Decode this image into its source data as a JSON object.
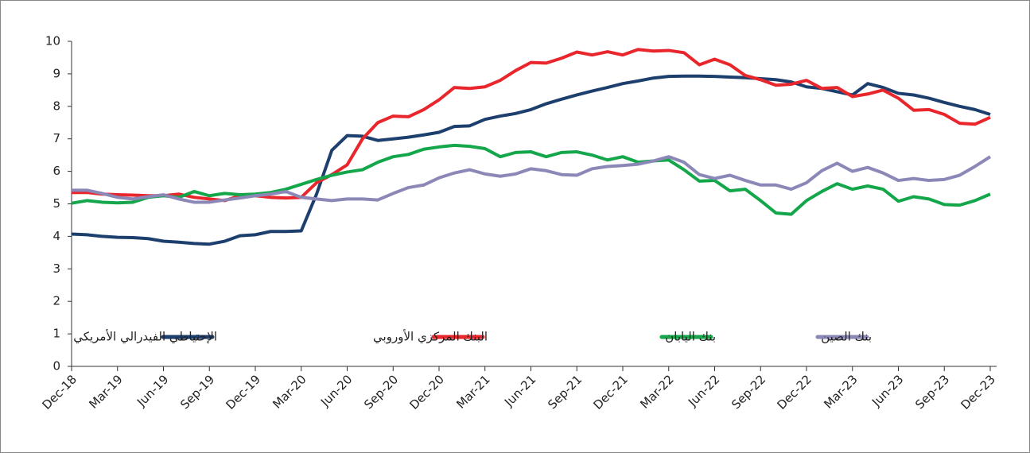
{
  "chart_data": {
    "type": "line",
    "categories": [
      "Dec-18",
      null,
      null,
      "Mar-19",
      null,
      null,
      "Jun-19",
      null,
      null,
      "Sep-19",
      null,
      null,
      "Dec-19",
      null,
      null,
      "Mar-20",
      null,
      null,
      "Jun-20",
      null,
      null,
      "Sep-20",
      null,
      null,
      "Dec-20",
      null,
      null,
      "Mar-21",
      null,
      null,
      "Jun-21",
      null,
      null,
      "Sep-21",
      null,
      null,
      "Dec-21",
      null,
      null,
      "Mar-22",
      null,
      null,
      "Jun-22",
      null,
      null,
      "Sep-22",
      null,
      null,
      "Dec-22",
      null,
      null,
      "Mar-23",
      null,
      null,
      "Jun-23",
      null,
      null,
      "Sep-23",
      null,
      null,
      "Dec-23"
    ],
    "series": [
      {
        "name": "الإحتياطي الفيدرالي الأمريكي",
        "color": "#1c3f6e",
        "values": [
          4.07,
          4.05,
          4.0,
          3.97,
          3.96,
          3.93,
          3.85,
          3.82,
          3.78,
          3.76,
          3.85,
          4.02,
          4.05,
          4.15,
          4.15,
          4.17,
          5.3,
          6.65,
          7.1,
          7.08,
          6.95,
          7.0,
          7.05,
          7.12,
          7.2,
          7.38,
          7.4,
          7.6,
          7.7,
          7.78,
          7.9,
          8.08,
          8.22,
          8.35,
          8.47,
          8.58,
          8.7,
          8.78,
          8.87,
          8.92,
          8.93,
          8.93,
          8.92,
          8.9,
          8.88,
          8.85,
          8.82,
          8.75,
          8.6,
          8.55,
          8.45,
          8.35,
          8.7,
          8.58,
          8.4,
          8.35,
          8.25,
          8.12,
          8.0,
          7.9,
          7.75
        ]
      },
      {
        "name": "البنك المركزي الأوروبي",
        "color": "#e8262c",
        "values": [
          5.35,
          5.35,
          5.3,
          5.28,
          5.27,
          5.25,
          5.25,
          5.3,
          5.2,
          5.15,
          5.1,
          5.25,
          5.25,
          5.2,
          5.18,
          5.2,
          5.65,
          5.9,
          6.2,
          7.0,
          7.5,
          7.7,
          7.68,
          7.9,
          8.2,
          8.58,
          8.55,
          8.6,
          8.8,
          9.1,
          9.35,
          9.33,
          9.48,
          9.67,
          9.58,
          9.68,
          9.58,
          9.75,
          9.7,
          9.72,
          9.65,
          9.28,
          9.45,
          9.28,
          8.95,
          8.82,
          8.65,
          8.68,
          8.8,
          8.55,
          8.58,
          8.3,
          8.38,
          8.5,
          8.25,
          7.88,
          7.9,
          7.75,
          7.48,
          7.45,
          7.66
        ]
      },
      {
        "name": "بنك اليابان",
        "color": "#14a64a",
        "values": [
          5.02,
          5.1,
          5.05,
          5.03,
          5.05,
          5.2,
          5.25,
          5.2,
          5.38,
          5.25,
          5.32,
          5.28,
          5.3,
          5.35,
          5.45,
          5.6,
          5.75,
          5.88,
          5.98,
          6.05,
          6.28,
          6.45,
          6.52,
          6.68,
          6.75,
          6.8,
          6.77,
          6.7,
          6.45,
          6.58,
          6.6,
          6.45,
          6.58,
          6.6,
          6.5,
          6.35,
          6.45,
          6.28,
          6.32,
          6.35,
          6.05,
          5.7,
          5.72,
          5.4,
          5.45,
          5.1,
          4.72,
          4.68,
          5.1,
          5.38,
          5.62,
          5.45,
          5.55,
          5.45,
          5.08,
          5.22,
          5.15,
          4.98,
          4.96,
          5.1,
          5.3
        ]
      },
      {
        "name": "بنك الصين",
        "color": "#8b88b8",
        "values": [
          5.42,
          5.42,
          5.32,
          5.2,
          5.15,
          5.22,
          5.28,
          5.15,
          5.05,
          5.05,
          5.12,
          5.18,
          5.25,
          5.3,
          5.38,
          5.2,
          5.15,
          5.1,
          5.15,
          5.15,
          5.12,
          5.32,
          5.5,
          5.58,
          5.8,
          5.95,
          6.05,
          5.92,
          5.85,
          5.92,
          6.08,
          6.02,
          5.9,
          5.88,
          6.08,
          6.15,
          6.18,
          6.22,
          6.32,
          6.45,
          6.28,
          5.9,
          5.78,
          5.88,
          5.72,
          5.58,
          5.58,
          5.45,
          5.65,
          6.02,
          6.25,
          6.0,
          6.12,
          5.95,
          5.72,
          5.78,
          5.72,
          5.75,
          5.88,
          6.15,
          6.45
        ]
      }
    ],
    "ylim": [
      0,
      10
    ],
    "yticks": [
      0,
      1,
      2,
      3,
      4,
      5,
      6,
      7,
      8,
      9,
      10
    ],
    "grid": false,
    "legend": "lower center"
  }
}
